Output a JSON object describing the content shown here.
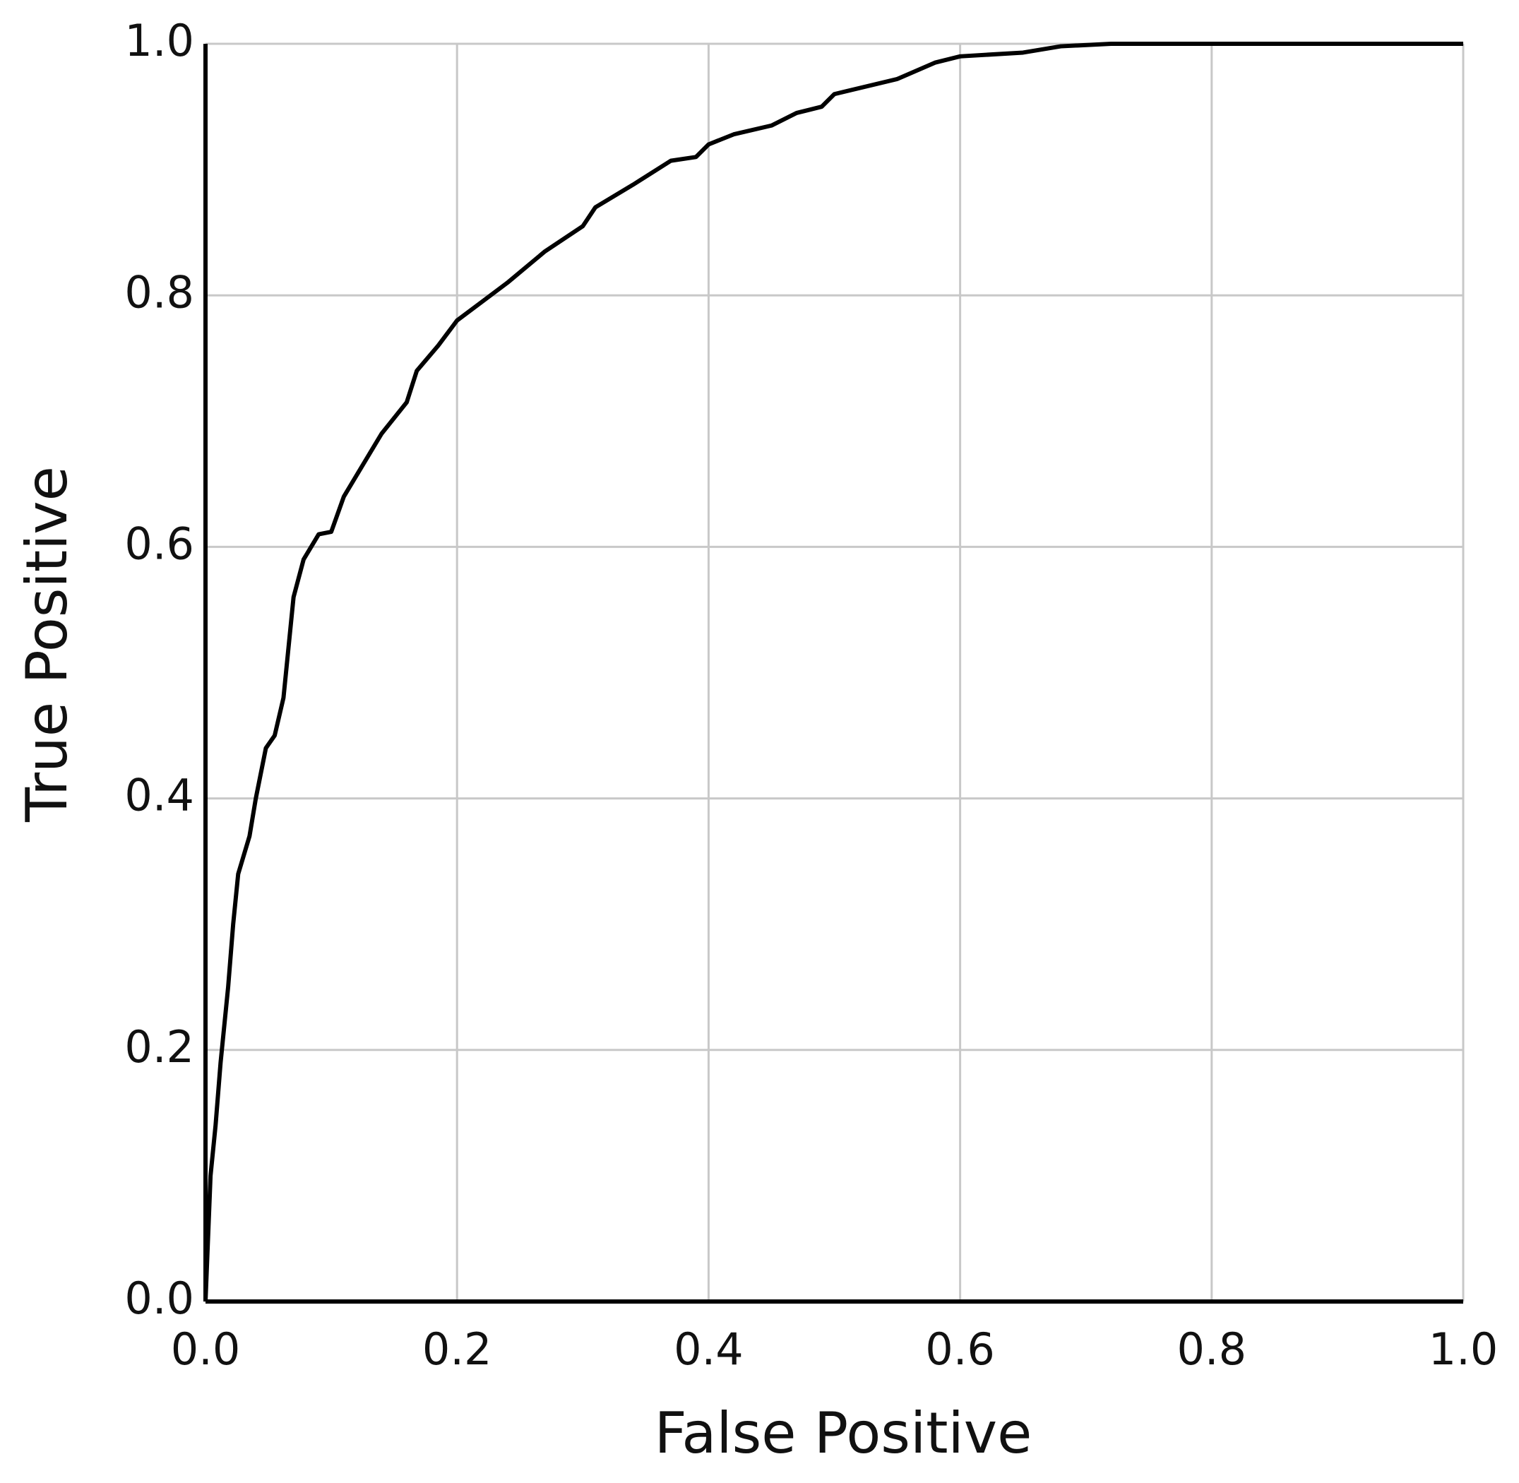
{
  "chart_data": {
    "type": "line",
    "x_label": "False Positive",
    "y_label": "True Positive",
    "x": [
      0,
      0.002,
      0.004,
      0.008,
      0.012,
      0.018,
      0.022,
      0.026,
      0.035,
      0.04,
      0.048,
      0.055,
      0.062,
      0.066,
      0.07,
      0.078,
      0.09,
      0.1,
      0.11,
      0.125,
      0.14,
      0.16,
      0.168,
      0.185,
      0.2,
      0.22,
      0.24,
      0.27,
      0.3,
      0.31,
      0.34,
      0.37,
      0.39,
      0.4,
      0.42,
      0.45,
      0.47,
      0.49,
      0.5,
      0.55,
      0.58,
      0.6,
      0.65,
      0.68,
      0.72,
      1
    ],
    "values": [
      0,
      0.05,
      0.1,
      0.14,
      0.19,
      0.25,
      0.3,
      0.34,
      0.37,
      0.4,
      0.44,
      0.45,
      0.48,
      0.52,
      0.56,
      0.59,
      0.61,
      0.612,
      0.64,
      0.665,
      0.69,
      0.715,
      0.74,
      0.76,
      0.78,
      0.795,
      0.81,
      0.835,
      0.855,
      0.87,
      0.888,
      0.907,
      0.91,
      0.92,
      0.928,
      0.935,
      0.945,
      0.95,
      0.96,
      0.972,
      0.985,
      0.99,
      0.993,
      0.998,
      1,
      1
    ],
    "color": "#000000",
    "xlim": [
      0,
      1
    ],
    "ylim": [
      0,
      1
    ],
    "xticks": [
      {
        "value": 0,
        "label": "0.0"
      },
      0.2,
      0.4,
      0.6,
      0.8,
      {
        "value": 1,
        "label": "1.0"
      }
    ],
    "yticks": [
      {
        "value": 0,
        "label": "0.0"
      },
      0.2,
      0.4,
      0.6,
      0.8,
      {
        "value": 1,
        "label": "1.0"
      }
    ],
    "grid": true
  }
}
